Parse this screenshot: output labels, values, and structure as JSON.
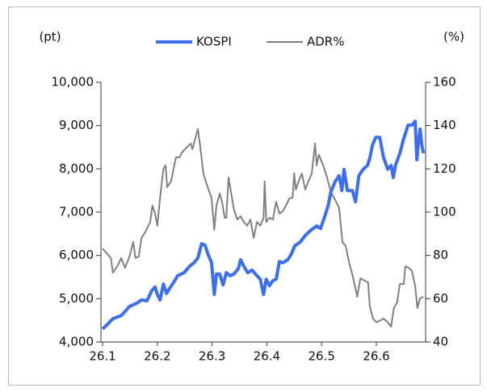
{
  "chart_data": {
    "type": "line",
    "y_label": "(pt)",
    "y2_label": "(%)",
    "xlim": [
      26.097,
      26.69
    ],
    "xticks": [
      26.1,
      26.2,
      26.3,
      26.4,
      26.5,
      26.6
    ],
    "ylim": [
      4000,
      10000
    ],
    "yticks": [
      {
        "value": 4000,
        "label": "4,000"
      },
      {
        "value": 5000,
        "label": "5,000"
      },
      {
        "value": 6000,
        "label": "6,000"
      },
      {
        "value": 7000,
        "label": "7,000"
      },
      {
        "value": 8000,
        "label": "8,000"
      },
      {
        "value": 9000,
        "label": "9,000"
      },
      {
        "value": 10000,
        "label": "10,000"
      }
    ],
    "y2lim": [
      40,
      160
    ],
    "y2ticks": [
      40,
      60,
      80,
      100,
      120,
      140,
      160
    ],
    "legend": "top",
    "series": [
      {
        "name": "KOSPI",
        "color": "#3b6ef0",
        "width": 4,
        "x": [
          26.1,
          26.112,
          26.119,
          26.134,
          26.149,
          26.163,
          26.171,
          26.181,
          26.19,
          26.196,
          26.2,
          26.205,
          26.211,
          26.217,
          26.222,
          26.23,
          26.237,
          26.249,
          26.259,
          26.267,
          26.274,
          26.281,
          26.287,
          26.293,
          26.299,
          26.304,
          26.308,
          26.314,
          26.32,
          26.326,
          26.333,
          26.34,
          26.348,
          26.352,
          26.358,
          26.365,
          26.373,
          26.382,
          26.388,
          26.394,
          26.399,
          26.405,
          26.411,
          26.417,
          26.423,
          26.429,
          26.438,
          26.444,
          26.451,
          26.461,
          26.47,
          26.481,
          26.491,
          26.498,
          26.506,
          26.512,
          26.517,
          26.525,
          26.532,
          26.537,
          26.541,
          26.547,
          26.556,
          26.562,
          26.568,
          26.576,
          26.584,
          26.588,
          26.593,
          26.599,
          26.606,
          26.613,
          26.621,
          26.627,
          26.631,
          26.635,
          26.643,
          26.65,
          26.658,
          26.665,
          26.671,
          26.674,
          26.677,
          26.68,
          26.683,
          26.686
        ],
        "values": [
          4300,
          4450,
          4540,
          4610,
          4820,
          4900,
          4970,
          4950,
          5190,
          5270,
          5100,
          4970,
          5340,
          5120,
          5230,
          5380,
          5530,
          5600,
          5750,
          5830,
          5940,
          6270,
          6240,
          6010,
          5840,
          5100,
          5570,
          5570,
          5320,
          5600,
          5530,
          5570,
          5700,
          5900,
          5750,
          5600,
          5660,
          5530,
          5450,
          5100,
          5450,
          5300,
          5420,
          5450,
          5860,
          5830,
          5900,
          6010,
          6220,
          6310,
          6460,
          6590,
          6680,
          6620,
          6910,
          7150,
          7470,
          7710,
          7840,
          7500,
          7990,
          7500,
          7500,
          7240,
          7840,
          7990,
          8080,
          8250,
          8550,
          8730,
          8730,
          8270,
          7990,
          8080,
          7800,
          8080,
          8360,
          8700,
          9010,
          9010,
          9100,
          8210,
          8640,
          8920,
          8550,
          8360
        ]
      },
      {
        "name": "ADR%",
        "color": "#808080",
        "width": 2,
        "axis": "y2",
        "x": [
          26.1,
          26.109,
          26.115,
          26.119,
          26.127,
          26.134,
          26.141,
          26.149,
          26.156,
          26.16,
          26.166,
          26.171,
          26.178,
          26.187,
          26.191,
          26.196,
          26.2,
          26.205,
          26.211,
          26.215,
          26.218,
          26.225,
          26.231,
          26.234,
          26.24,
          26.246,
          26.255,
          26.261,
          26.264,
          26.27,
          26.274,
          26.278,
          26.284,
          26.29,
          26.296,
          26.299,
          26.304,
          26.308,
          26.314,
          26.318,
          26.323,
          26.326,
          26.33,
          26.335,
          26.34,
          26.346,
          26.352,
          26.358,
          26.364,
          26.37,
          26.376,
          26.382,
          26.388,
          26.394,
          26.396,
          26.399,
          26.405,
          26.411,
          26.417,
          26.423,
          26.429,
          26.435,
          26.441,
          26.447,
          26.45,
          26.453,
          26.458,
          26.464,
          26.47,
          26.476,
          26.482,
          26.488,
          26.491,
          26.495,
          26.503,
          26.51,
          26.517,
          26.525,
          26.532,
          26.538,
          26.544,
          26.55,
          26.556,
          26.562,
          26.565,
          26.571,
          26.579,
          26.585,
          26.588,
          26.594,
          26.6,
          26.606,
          26.613,
          26.621,
          26.627,
          26.632,
          26.638,
          26.643,
          26.65,
          26.653,
          26.659,
          26.665,
          26.671,
          26.675,
          26.68,
          26.686
        ],
        "values": [
          83.2,
          80.6,
          78.8,
          72.0,
          75.0,
          78.8,
          74.3,
          79.5,
          86.2,
          78.8,
          79.5,
          88.1,
          90.8,
          95.5,
          103,
          99.3,
          93.7,
          106.7,
          119.8,
          121.6,
          111.6,
          114.2,
          121.6,
          125.3,
          125.3,
          127.9,
          130.2,
          131.7,
          129.1,
          134.7,
          138.4,
          131.0,
          117.9,
          113.0,
          108.6,
          106.7,
          91.8,
          103.0,
          108.6,
          104.8,
          97.4,
          97.4,
          116.0,
          108.6,
          101.1,
          96.6,
          98.1,
          95.5,
          93.7,
          96.6,
          88.1,
          95.5,
          93.7,
          97.4,
          114.2,
          95.5,
          97.4,
          96.6,
          104.8,
          99.3,
          100.4,
          103.0,
          106.3,
          106.7,
          117.9,
          110.4,
          114.2,
          117.9,
          110.4,
          114.2,
          117.9,
          131.7,
          121.6,
          126.5,
          121.6,
          116.0,
          109.3,
          105.6,
          101.9,
          86.2,
          84.4,
          76.9,
          71.3,
          64.6,
          60.9,
          69.5,
          68.3,
          67.6,
          56.4,
          50.8,
          49.1,
          49.8,
          50.8,
          49.1,
          47.1,
          55.7,
          58.3,
          66.8,
          66.8,
          75.0,
          74.3,
          72.8,
          65.7,
          55.7,
          60.2,
          60.9
        ]
      }
    ]
  }
}
